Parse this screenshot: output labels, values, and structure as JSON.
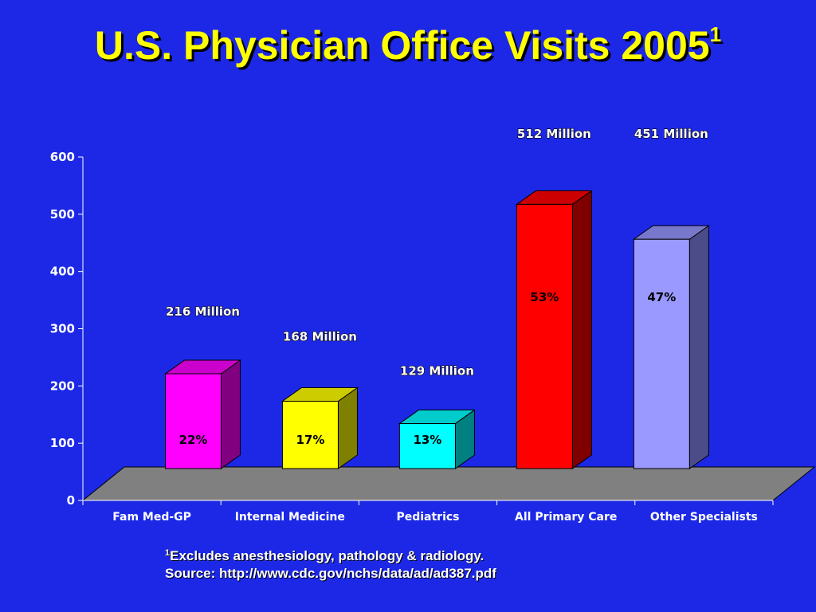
{
  "title": {
    "main": "U.S. Physician Office Visits 2005",
    "superscript": "1"
  },
  "footnote": {
    "marker": "1",
    "line1": "Excludes anesthesiology, pathology & radiology.",
    "line2": "Source: http://www.cdc.gov/nchs/data/ad/ad387.pdf"
  },
  "chart_data": {
    "type": "bar",
    "categories": [
      "Fam Med-GP",
      "Internal Medicine",
      "Pediatrics",
      "All Primary Care",
      "Other Specialists"
    ],
    "values": [
      216,
      168,
      129,
      512,
      451
    ],
    "value_labels": [
      "216 Million",
      "168 Million",
      "129 Million",
      "512 Million",
      "451 Million"
    ],
    "percent_labels": [
      "22%",
      "17%",
      "13%",
      "53%",
      "47%"
    ],
    "ylim": [
      0,
      600
    ],
    "yticks": [
      0,
      100,
      200,
      300,
      400,
      500,
      600
    ],
    "grid": false,
    "colors": {
      "fronts": [
        "#ff00ff",
        "#ffff00",
        "#00ffff",
        "#ff0000",
        "#9999ff"
      ],
      "tops": [
        "#cc00cc",
        "#cccc00",
        "#00cccc",
        "#cc0000",
        "#7777cc"
      ],
      "sides": [
        "#800080",
        "#808000",
        "#008080",
        "#800000",
        "#4c4c88"
      ],
      "floor": "#808080",
      "axis": "#ffffff",
      "label_text": "#ffffff",
      "percent_text": "#000000"
    }
  }
}
